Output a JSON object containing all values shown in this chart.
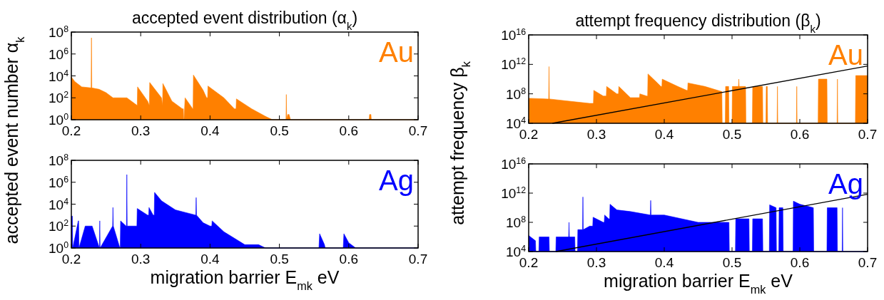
{
  "chart_data": [
    {
      "type": "area",
      "title": "accepted event distribution (α$_{k}$)",
      "ylabel": "accepted event number α$_{k}$",
      "log": "y",
      "legend": "top right",
      "xlim": [
        0.2,
        0.7
      ],
      "ylim": [
        1,
        100000000
      ],
      "xticks": [
        0.2,
        0.3,
        0.4,
        0.5,
        0.6,
        0.7
      ],
      "yticks": [
        {
          "value": 1,
          "label": "10$^{0}$"
        },
        {
          "value": 100,
          "label": "10$^{2}$"
        },
        {
          "value": 10000,
          "label": "10$^{4}$"
        },
        {
          "value": 1000000,
          "label": "10$^{6}$"
        },
        {
          "value": 100000000,
          "label": "10$^{8}$"
        }
      ],
      "series": [
        {
          "name": "Au",
          "color": "#ff8000",
          "x": [
            0.2,
            0.205,
            0.215,
            0.2285,
            0.229,
            0.2295,
            0.24,
            0.25,
            0.26,
            0.28,
            0.295,
            0.2955,
            0.31,
            0.3125,
            0.313,
            0.33,
            0.3315,
            0.332,
            0.345,
            0.36,
            0.3615,
            0.362,
            0.3625,
            0.364,
            0.375,
            0.3755,
            0.376,
            0.39,
            0.395,
            0.3965,
            0.397,
            0.42,
            0.435,
            0.4375,
            0.438,
            0.46,
            0.48,
            0.49,
            0.5095,
            0.51,
            0.5105,
            0.512,
            0.514,
            0.516,
            0.52,
            0.6295,
            0.63,
            0.632,
            0.6325,
            0.7
          ],
          "values": [
            8000,
            3000,
            1000,
            800,
            30000000,
            800,
            600,
            300,
            100,
            100,
            20,
            1000,
            50,
            20,
            2500,
            100,
            20,
            2000,
            50,
            10,
            10,
            1,
            1,
            100,
            10,
            10,
            12000,
            500,
            100,
            100,
            1200,
            100,
            10,
            10,
            80,
            10,
            2,
            1,
            1,
            200,
            1,
            3,
            3,
            1,
            1,
            1,
            3,
            3,
            1,
            1
          ]
        }
      ]
    },
    {
      "type": "area",
      "xlabel": "migration barrier E$_{mk}$ eV",
      "log": "y",
      "legend": "top right",
      "xlim": [
        0.2,
        0.7
      ],
      "ylim": [
        1,
        100000000
      ],
      "xticks": [
        0.2,
        0.3,
        0.4,
        0.5,
        0.6,
        0.7
      ],
      "yticks": [
        {
          "value": 1,
          "label": "10$^{0}$"
        },
        {
          "value": 100,
          "label": "10$^{2}$"
        },
        {
          "value": 10000,
          "label": "10$^{4}$"
        },
        {
          "value": 1000000,
          "label": "10$^{6}$"
        },
        {
          "value": 100000000,
          "label": "10$^{8}$"
        }
      ],
      "series": [
        {
          "name": "Ag",
          "color": "#0000ff",
          "x": [
            0.2,
            0.2015,
            0.202,
            0.21,
            0.2105,
            0.211,
            0.22,
            0.23,
            0.2405,
            0.241,
            0.2415,
            0.2595,
            0.26,
            0.2605,
            0.27,
            0.2705,
            0.271,
            0.279,
            0.2795,
            0.28,
            0.2805,
            0.29,
            0.2945,
            0.295,
            0.31,
            0.3115,
            0.312,
            0.318,
            0.3195,
            0.32,
            0.33,
            0.35,
            0.3795,
            0.38,
            0.3805,
            0.39,
            0.4,
            0.4025,
            0.403,
            0.42,
            0.44,
            0.45,
            0.47,
            0.48,
            0.49,
            0.557,
            0.558,
            0.565,
            0.566,
            0.592,
            0.593,
            0.6,
            0.61,
            0.7
          ],
          "values": [
            800,
            800,
            1,
            300,
            300,
            1,
            100,
            100,
            1,
            300,
            1,
            100,
            5000,
            100,
            1,
            1,
            300,
            100,
            100,
            5000000,
            100,
            100,
            100,
            4000,
            1000,
            1000,
            5000,
            1000,
            1000,
            120000,
            20000,
            3000,
            1000,
            40000,
            1000,
            200,
            100,
            100,
            300,
            30,
            5,
            2,
            2,
            1,
            1,
            1,
            20,
            2,
            1,
            1,
            20,
            3,
            1,
            1
          ]
        }
      ]
    },
    {
      "type": "area",
      "title": "attempt frequency distribution (β$_{k}$)",
      "ylabel": "attempt frequency β$_{k}$",
      "log": "y",
      "legend": "top right",
      "xlim": [
        0.2,
        0.7
      ],
      "ylim": [
        10000,
        1e+16
      ],
      "xticks": [
        0.2,
        0.3,
        0.4,
        0.5,
        0.6,
        0.7
      ],
      "yticks": [
        {
          "value": 10000,
          "label": "10$^{4}$"
        },
        {
          "value": 100000000,
          "label": "10$^{8}$"
        },
        {
          "value": 1000000000000.0,
          "label": "10$^{12}$"
        },
        {
          "value": 1e+16,
          "label": "10$^{16}$"
        }
      ],
      "series": [
        {
          "name": "Au",
          "color": "#ff8000",
          "x": [
            0.2,
            0.228,
            0.2295,
            0.23,
            0.2305,
            0.26,
            0.29,
            0.2955,
            0.296,
            0.31,
            0.3145,
            0.315,
            0.33,
            0.3325,
            0.333,
            0.35,
            0.36,
            0.3635,
            0.364,
            0.374,
            0.3755,
            0.376,
            0.39,
            0.395,
            0.3965,
            0.397,
            0.42,
            0.433,
            0.4345,
            0.435,
            0.46,
            0.485,
            0.4855,
            0.49,
            0.4905,
            0.495,
            0.4955,
            0.5,
            0.5005,
            0.5095,
            0.51,
            0.5105,
            0.52,
            0.5205,
            0.53,
            0.5305,
            0.545,
            0.5455,
            0.55,
            0.5505,
            0.552,
            0.5525,
            0.5665,
            0.567,
            0.5675,
            0.595,
            0.5955,
            0.596,
            0.627,
            0.6275,
            0.64,
            0.6405,
            0.655,
            0.6555,
            0.656,
            0.682,
            0.6825,
            0.7
          ],
          "values": [
            25000000.0,
            20000000.0,
            20000000.0,
            500000000000.0,
            20000000.0,
            10000000.0,
            5000000.0,
            5000000.0,
            300000000.0,
            50000000.0,
            50000000.0,
            1000000000.0,
            100000000.0,
            100000000.0,
            1000000000.0,
            30000000.0,
            30000000.0,
            30000000.0,
            100000000.0,
            50000000.0,
            50000000.0,
            50000000000.0,
            3000000000.0,
            1000000000.0,
            1000000000.0,
            10000000000.0,
            1000000000.0,
            300000000.0,
            300000000.0,
            3000000000.0,
            1000000000.0,
            200000000.0,
            10000.0,
            10000.0,
            1000000000.0,
            1000000000.0,
            10000.0,
            10000.0,
            1000000000.0,
            1000000000.0,
            10000000000.0,
            1000000000.0,
            1000000000.0,
            10000.0,
            10000.0,
            1000000000.0,
            1000000000.0,
            10000.0,
            10000.0,
            1000000000.0,
            1000000000.0,
            10000.0,
            10000.0,
            1000000000.0,
            10000.0,
            10000.0,
            1000000000.0,
            10000.0,
            10000.0,
            10000000000.0,
            10000000000.0,
            10000.0,
            10000.0,
            10000000000.0,
            10000.0,
            10000.0,
            30000000000.0,
            30000000000.0
          ]
        },
        {
          "type": "line",
          "color": "#000000",
          "x": [
            0.235,
            0.7
          ],
          "values": [
            10000,
            600000000000.0
          ]
        }
      ]
    },
    {
      "type": "area",
      "xlabel": "migration barrier E$_{mk}$ eV",
      "log": "y",
      "legend": "top right",
      "xlim": [
        0.2,
        0.7
      ],
      "ylim": [
        10000,
        1e+16
      ],
      "xticks": [
        0.2,
        0.3,
        0.4,
        0.5,
        0.6,
        0.7
      ],
      "yticks": [
        {
          "value": 10000,
          "label": "10$^{4}$"
        },
        {
          "value": 100000000,
          "label": "10$^{8}$"
        },
        {
          "value": 1000000000000.0,
          "label": "10$^{12}$"
        },
        {
          "value": 1e+16,
          "label": "10$^{16}$"
        }
      ],
      "series": [
        {
          "name": "Ag",
          "color": "#0000ff",
          "x": [
            0.2,
            0.21,
            0.2105,
            0.215,
            0.2155,
            0.23,
            0.2305,
            0.24,
            0.2405,
            0.259,
            0.2595,
            0.26,
            0.268,
            0.2685,
            0.272,
            0.2725,
            0.2795,
            0.28,
            0.2805,
            0.29,
            0.2945,
            0.295,
            0.31,
            0.3115,
            0.312,
            0.318,
            0.3195,
            0.32,
            0.33,
            0.35,
            0.3795,
            0.38,
            0.3805,
            0.4,
            0.45,
            0.49,
            0.4955,
            0.496,
            0.505,
            0.5055,
            0.525,
            0.5255,
            0.53,
            0.5305,
            0.545,
            0.5455,
            0.555,
            0.5555,
            0.565,
            0.5655,
            0.569,
            0.5695,
            0.575,
            0.5755,
            0.59,
            0.5905,
            0.6,
            0.62,
            0.6205,
            0.64,
            0.6405,
            0.655,
            0.6555,
            0.6625,
            0.663,
            0.6635,
            0.7
          ],
          "values": [
            1600000.0,
            300000.0,
            10000.0,
            10000.0,
            1000000.0,
            1000000.0,
            10000.0,
            10000.0,
            1000000.0,
            1000000.0,
            100000000.0,
            1000000.0,
            1000000.0,
            10000.0,
            10000.0,
            10000000.0,
            10000000.0,
            300000000000.0,
            10000000.0,
            30000000.0,
            30000000.0,
            500000000.0,
            100000000.0,
            100000000.0,
            1000000000.0,
            300000000.0,
            300000000.0,
            30000000000.0,
            5000000000.0,
            3000000000.0,
            1000000000.0,
            100000000000.0,
            1000000000.0,
            1000000000.0,
            100000000.0,
            100000000.0,
            100000000.0,
            10000.0,
            10000.0,
            300000000.0,
            300000000.0,
            10000.0,
            10000.0,
            300000000.0,
            300000000.0,
            10000.0,
            10000.0,
            25000000000.0,
            10000000000.0,
            10000.0,
            10000.0,
            10000000000.0,
            10000000000.0,
            10000.0,
            10000.0,
            80000000000.0,
            30000000000.0,
            10000000000.0,
            10000.0,
            10000.0,
            10000000000.0,
            10000000000.0,
            10000.0,
            10000.0,
            10000000000.0,
            10000.0,
            10000.0
          ]
        },
        {
          "type": "line",
          "color": "#000000",
          "x": [
            0.24,
            0.7
          ],
          "values": [
            10000,
            700000000000.0
          ]
        }
      ]
    }
  ]
}
